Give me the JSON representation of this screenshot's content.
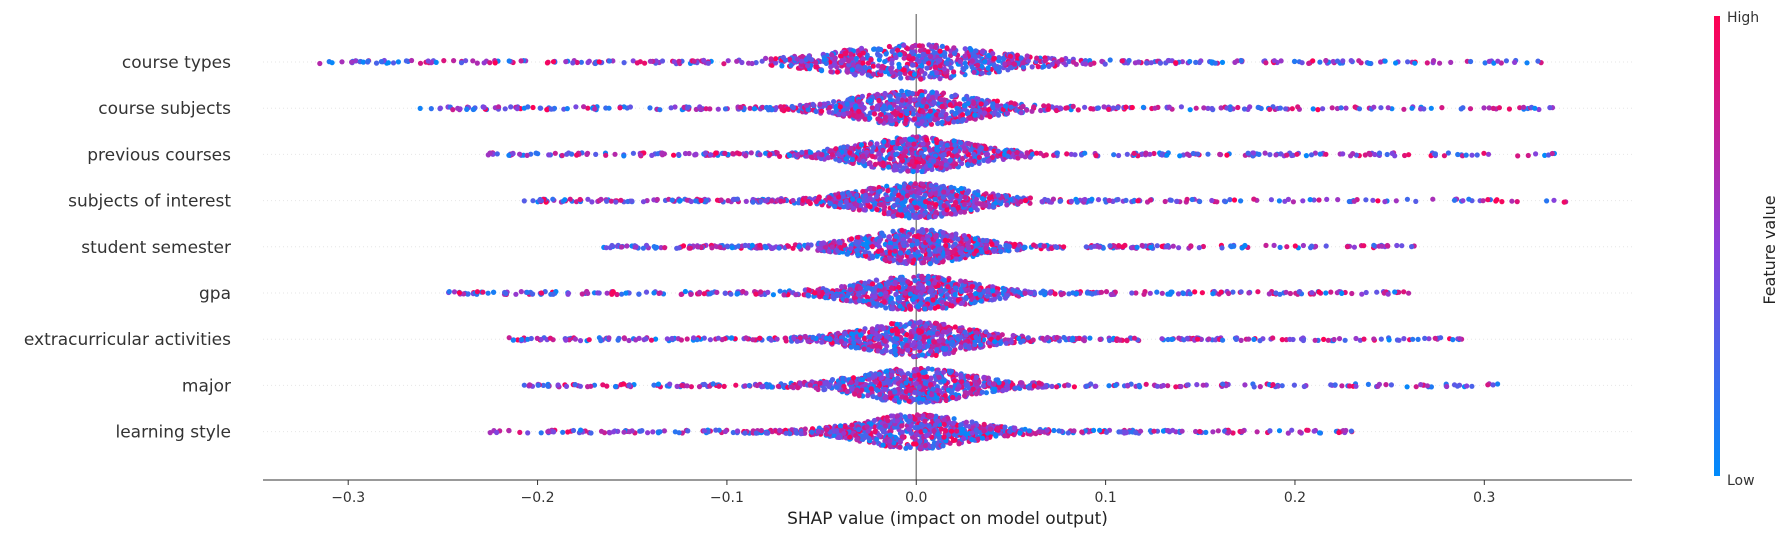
{
  "chart_data": {
    "type": "scatter",
    "subtype": "shap-beeswarm",
    "title": "",
    "xlabel": "SHAP value (impact on model output)",
    "ylabel": "",
    "xlim": [
      -0.345,
      0.378
    ],
    "x_ticks": [
      -0.3,
      -0.2,
      -0.1,
      0.0,
      0.1,
      0.2,
      0.3
    ],
    "x_tick_labels": [
      "−0.3",
      "−0.2",
      "−0.1",
      "0.0",
      "0.1",
      "0.2",
      "0.3"
    ],
    "grid": false,
    "features": [
      {
        "name": "course types",
        "min": -0.315,
        "max": 0.33,
        "spread": 1.3
      },
      {
        "name": "course subjects",
        "min": -0.262,
        "max": 0.336,
        "spread": 1.0
      },
      {
        "name": "previous courses",
        "min": -0.226,
        "max": 0.337,
        "spread": 0.9
      },
      {
        "name": "subjects of interest",
        "min": -0.207,
        "max": 0.343,
        "spread": 0.9
      },
      {
        "name": "student semester",
        "min": -0.165,
        "max": 0.263,
        "spread": 0.85
      },
      {
        "name": "gpa",
        "min": -0.247,
        "max": 0.26,
        "spread": 0.9
      },
      {
        "name": "extracurricular activities",
        "min": -0.215,
        "max": 0.288,
        "spread": 0.85
      },
      {
        "name": "major",
        "min": -0.207,
        "max": 0.307,
        "spread": 0.9
      },
      {
        "name": "learning style",
        "min": -0.225,
        "max": 0.23,
        "spread": 0.85
      }
    ],
    "colorbar": {
      "label": "Feature value",
      "high_label": "High",
      "low_label": "Low",
      "high_color": "#ff0052",
      "mid_color": "#8a3fdb",
      "low_color": "#008bfb"
    },
    "zero_line": true,
    "legend": "colorbar-right"
  }
}
